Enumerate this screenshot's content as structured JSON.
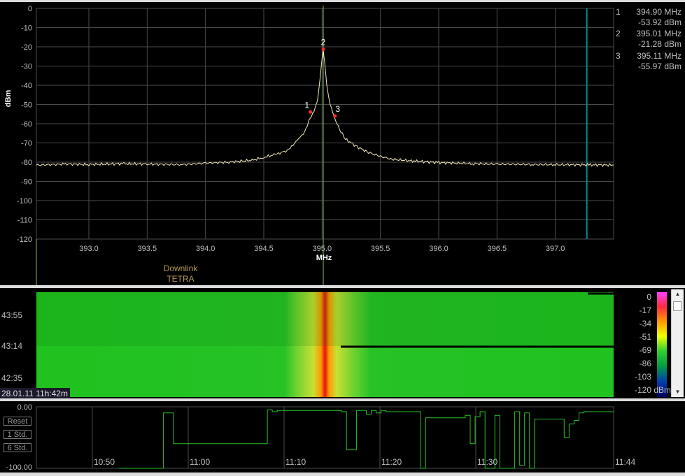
{
  "colors": {
    "trace": "#f3e9c0",
    "grid": "#4b4b4b",
    "axis_text": "#bebebe",
    "marker": "#ff2a2a",
    "center_line": "#7fc05a",
    "edge_line": "#008c96",
    "band_label": "#b59c52",
    "history_line": "#27c22a"
  },
  "chart_data": [
    {
      "type": "line",
      "xlabel": "MHz",
      "ylabel": "dBm",
      "xlim": [
        392.55,
        397.5
      ],
      "ylim": [
        -120,
        0
      ],
      "grid": true,
      "x_ticks": [
        "393.0",
        "393.5",
        "394.0",
        "394.5",
        "395.0",
        "395.5",
        "396.0",
        "396.5",
        "397.0"
      ],
      "y_ticks": [
        "0",
        "-10",
        "-20",
        "-30",
        "-40",
        "-50",
        "-60",
        "-70",
        "-80",
        "-90",
        "-100",
        "-110",
        "-120"
      ],
      "center_freq": 395.01,
      "edge_freq": 397.27,
      "series": [
        {
          "x": [
            392.55,
            392.8,
            393.0,
            393.3,
            393.5,
            393.8,
            394.0,
            394.2,
            394.4,
            394.5,
            394.6,
            394.7,
            394.75,
            394.8,
            394.85,
            394.9,
            394.93,
            394.96,
            394.98,
            395.0,
            395.01,
            395.02,
            395.04,
            395.07,
            395.1,
            395.15,
            395.2,
            395.3,
            395.4,
            395.5,
            395.6,
            395.8,
            396.0,
            396.3,
            396.5,
            396.8,
            397.0,
            397.3,
            397.5
          ],
          "y": [
            -81.5,
            -81,
            -81.2,
            -80.8,
            -81,
            -81.3,
            -80.5,
            -80,
            -79,
            -77.5,
            -76,
            -74,
            -71,
            -68,
            -64,
            -57,
            -53.9,
            -48,
            -38,
            -26,
            -21.3,
            -27,
            -40,
            -50,
            -56,
            -63,
            -68,
            -72,
            -75,
            -77,
            -78.5,
            -79.5,
            -80.2,
            -80.8,
            -81,
            -81.2,
            -81.3,
            -81.4,
            -81.5
          ]
        }
      ],
      "annotations": [
        {
          "text": "Downlink"
        },
        {
          "text": "TETRA"
        }
      ],
      "markers": [
        {
          "id": "1",
          "freq": 394.9,
          "level": -53.92,
          "freq_label": "394.90 MHz",
          "level_label": "-53.92 dBm"
        },
        {
          "id": "2",
          "freq": 395.01,
          "level": -21.28,
          "freq_label": "395.01 MHz",
          "level_label": "-21.28 dBm"
        },
        {
          "id": "3",
          "freq": 395.11,
          "level": -55.97,
          "freq_label": "395.11 MHz",
          "level_label": "-55.97 dBm"
        }
      ]
    },
    {
      "type": "heatmap",
      "time_labels": [
        "43:55",
        "43:14",
        "42:35"
      ],
      "timestamp": "28.01.11 11h:42m",
      "colorbar_ticks": [
        "0",
        "-17",
        "-34",
        "-51",
        "-69",
        "-86",
        "-103",
        "-120 dBm"
      ]
    },
    {
      "type": "line",
      "y_ticks": [
        "0.00",
        "-100.00"
      ],
      "ylim": [
        -100,
        0
      ],
      "x_ticks": [
        "10:50",
        "11:00",
        "11:10",
        "11:20",
        "11:30",
        "11:44"
      ],
      "buttons": [
        "Reset",
        "1 Std.",
        "6 Std."
      ],
      "series": [
        {
          "x": [
            0,
            0.08,
            0.09,
            0.1,
            0.11,
            0.3,
            0.31,
            0.32,
            0.45,
            0.46,
            0.47,
            0.48,
            0.5,
            0.51,
            0.52,
            0.53,
            0.54,
            0.6,
            0.61,
            0.62,
            0.7,
            0.71,
            0.72,
            0.73,
            0.74,
            0.76,
            0.77,
            0.8,
            0.81,
            0.82,
            0.83,
            0.84,
            0.9,
            0.91,
            0.92,
            0.93,
            0.94,
            1
          ],
          "y": [
            -100,
            -100,
            -10,
            -10,
            -60,
            -5,
            -8,
            -6,
            -8,
            -70,
            -70,
            -6,
            -12,
            -6,
            -10,
            -6,
            -8,
            -8,
            -100,
            -18,
            -14,
            -60,
            -16,
            -8,
            -100,
            -14,
            -100,
            -8,
            -95,
            -10,
            -100,
            -20,
            -50,
            -28,
            -22,
            -10,
            -8,
            -8
          ]
        }
      ]
    }
  ]
}
